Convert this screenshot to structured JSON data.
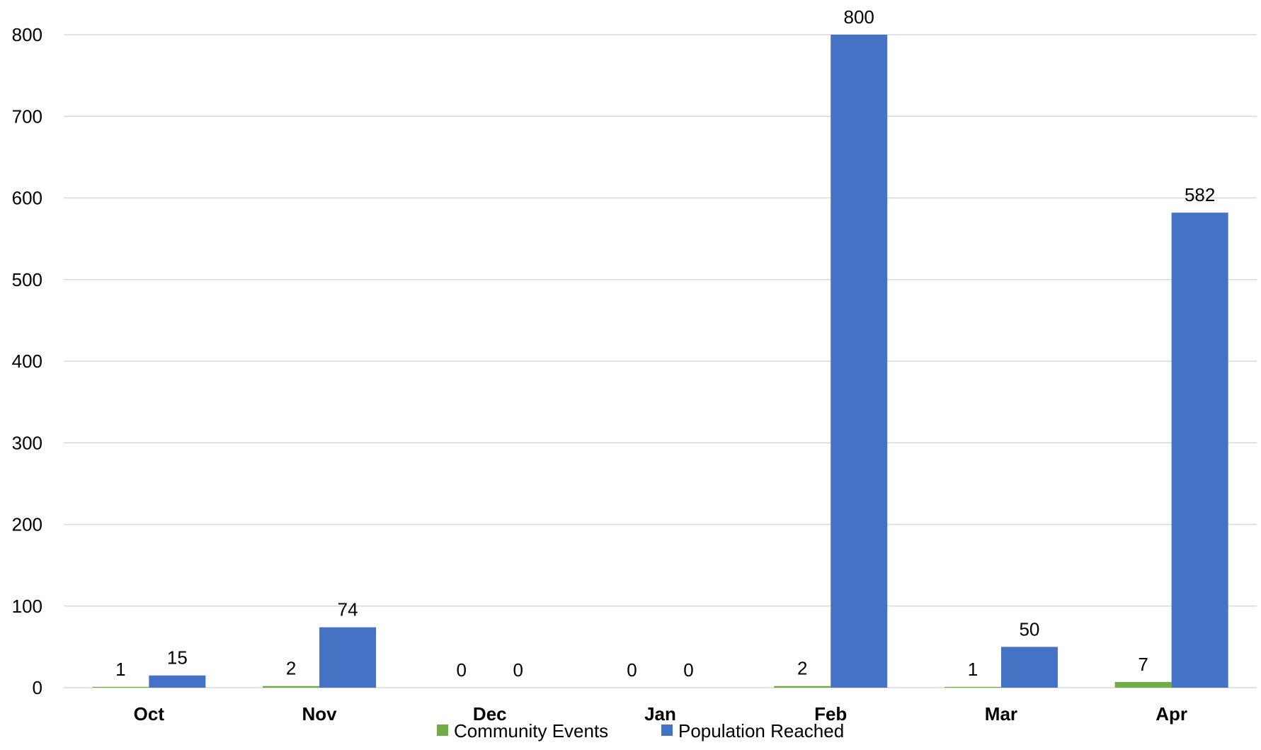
{
  "chart_data": {
    "type": "bar",
    "title": "",
    "xlabel": "",
    "ylabel": "",
    "categories": [
      "Oct",
      "Nov",
      "Dec",
      "Jan",
      "Feb",
      "Mar",
      "Apr"
    ],
    "series": [
      {
        "name": "Community Events",
        "values": [
          1,
          2,
          0,
          0,
          2,
          1,
          7
        ],
        "color": "#70ad47"
      },
      {
        "name": "Population Reached",
        "values": [
          15,
          74,
          0,
          0,
          800,
          50,
          582
        ],
        "color": "#4472c4"
      }
    ],
    "ylim": [
      0,
      800
    ],
    "yticks": [
      0,
      100,
      200,
      300,
      400,
      500,
      600,
      700,
      800
    ],
    "grid": true,
    "data_labels": true,
    "legend_position": "bottom"
  }
}
